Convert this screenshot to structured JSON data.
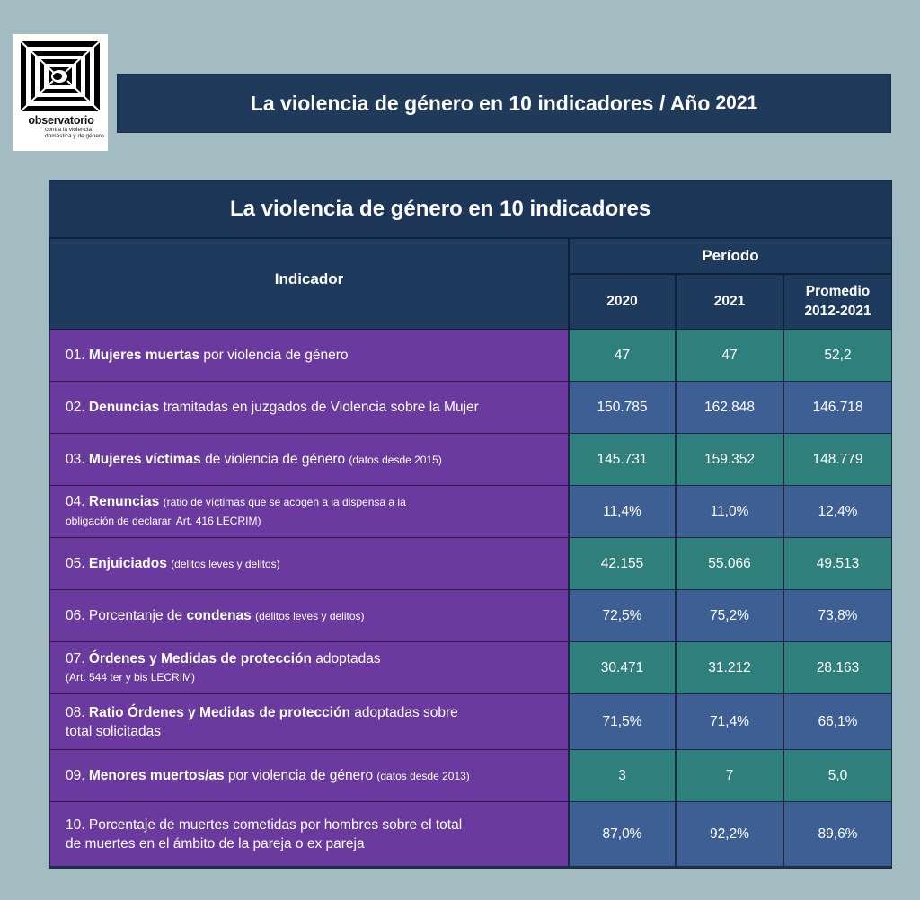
{
  "logo": {
    "icon": "spiral-square-icon",
    "brand": "observatorio",
    "sub": "contra la violencia doméstica y de género"
  },
  "banner": {
    "title": "La violencia de género en 10 indicadores / Año",
    "year": "2021"
  },
  "table": {
    "title": "La violencia de género en 10 indicadores",
    "col_indicador": "Indicador",
    "col_periodo": "Período",
    "col_2020": "2020",
    "col_2021": "2021",
    "col_promedio_line1": "Promedio",
    "col_promedio_line2": "2012-2021",
    "rows": [
      {
        "num": "01.",
        "bold": "Mujeres muertas",
        "rest": " por violencia de género",
        "small": "",
        "line2": "",
        "v2020": "47",
        "v2021": "47",
        "prom": "52,2"
      },
      {
        "num": "02.",
        "bold": "Denuncias",
        "rest": " tramitadas en juzgados de Violencia sobre la Mujer",
        "small": "",
        "line2": "",
        "v2020": "150.785",
        "v2021": "162.848",
        "prom": "146.718"
      },
      {
        "num": "03.",
        "bold": "Mujeres víctimas",
        "rest": " de violencia de género ",
        "small": "(datos desde 2015)",
        "line2": "",
        "v2020": "145.731",
        "v2021": "159.352",
        "prom": "148.779"
      },
      {
        "num": "04.",
        "bold": "Renuncias",
        "rest": " ",
        "small": "(ratio de víctimas que se acogen a la dispensa a la",
        "line2": "obligación de declarar. Art. 416 LECRIM)",
        "v2020": "11,4%",
        "v2021": "11,0%",
        "prom": "12,4%"
      },
      {
        "num": "05.",
        "bold": "Enjuiciados",
        "rest": " ",
        "small": "(delitos leves y delitos)",
        "line2": "",
        "v2020": "42.155",
        "v2021": "55.066",
        "prom": "49.513"
      },
      {
        "num": "06.",
        "pre": "Porcentanje de ",
        "bold": "condenas",
        "rest": " ",
        "small": "(delitos leves y delitos)",
        "line2": "",
        "v2020": "72,5%",
        "v2021": "75,2%",
        "prom": "73,8%"
      },
      {
        "num": "07.",
        "bold": "Órdenes y Medidas de protección",
        "rest": " adoptadas",
        "small": "",
        "line2": "(Art. 544 ter y bis LECRIM)",
        "v2020": "30.471",
        "v2021": "31.212",
        "prom": "28.163"
      },
      {
        "num": "08.",
        "bold": "Ratio Órdenes y Medidas de protección",
        "rest": " adoptadas sobre",
        "small": "",
        "line2": "total solicitadas",
        "v2020": "71,5%",
        "v2021": "71,4%",
        "prom": "66,1%"
      },
      {
        "num": "09.",
        "bold": "Menores muertos/as",
        "rest": " por violencia de género ",
        "small": "(datos desde 2013)",
        "line2": "",
        "v2020": "3",
        "v2021": "7",
        "prom": "5,0"
      },
      {
        "num": "10.",
        "pre": "Porcentaje de muertes cometidas por hombres sobre el total",
        "bold": "",
        "rest": "",
        "small": "",
        "line2": "de muertes en el ámbito de la pareja o ex pareja",
        "v2020": "87,0%",
        "v2021": "92,2%",
        "prom": "89,6%"
      }
    ]
  },
  "colors": {
    "background": "#a3bcc2",
    "navy": "#1d3657",
    "purple": "#6a3a9e",
    "teal": "#2f7f7c",
    "blue": "#3e5f93"
  }
}
